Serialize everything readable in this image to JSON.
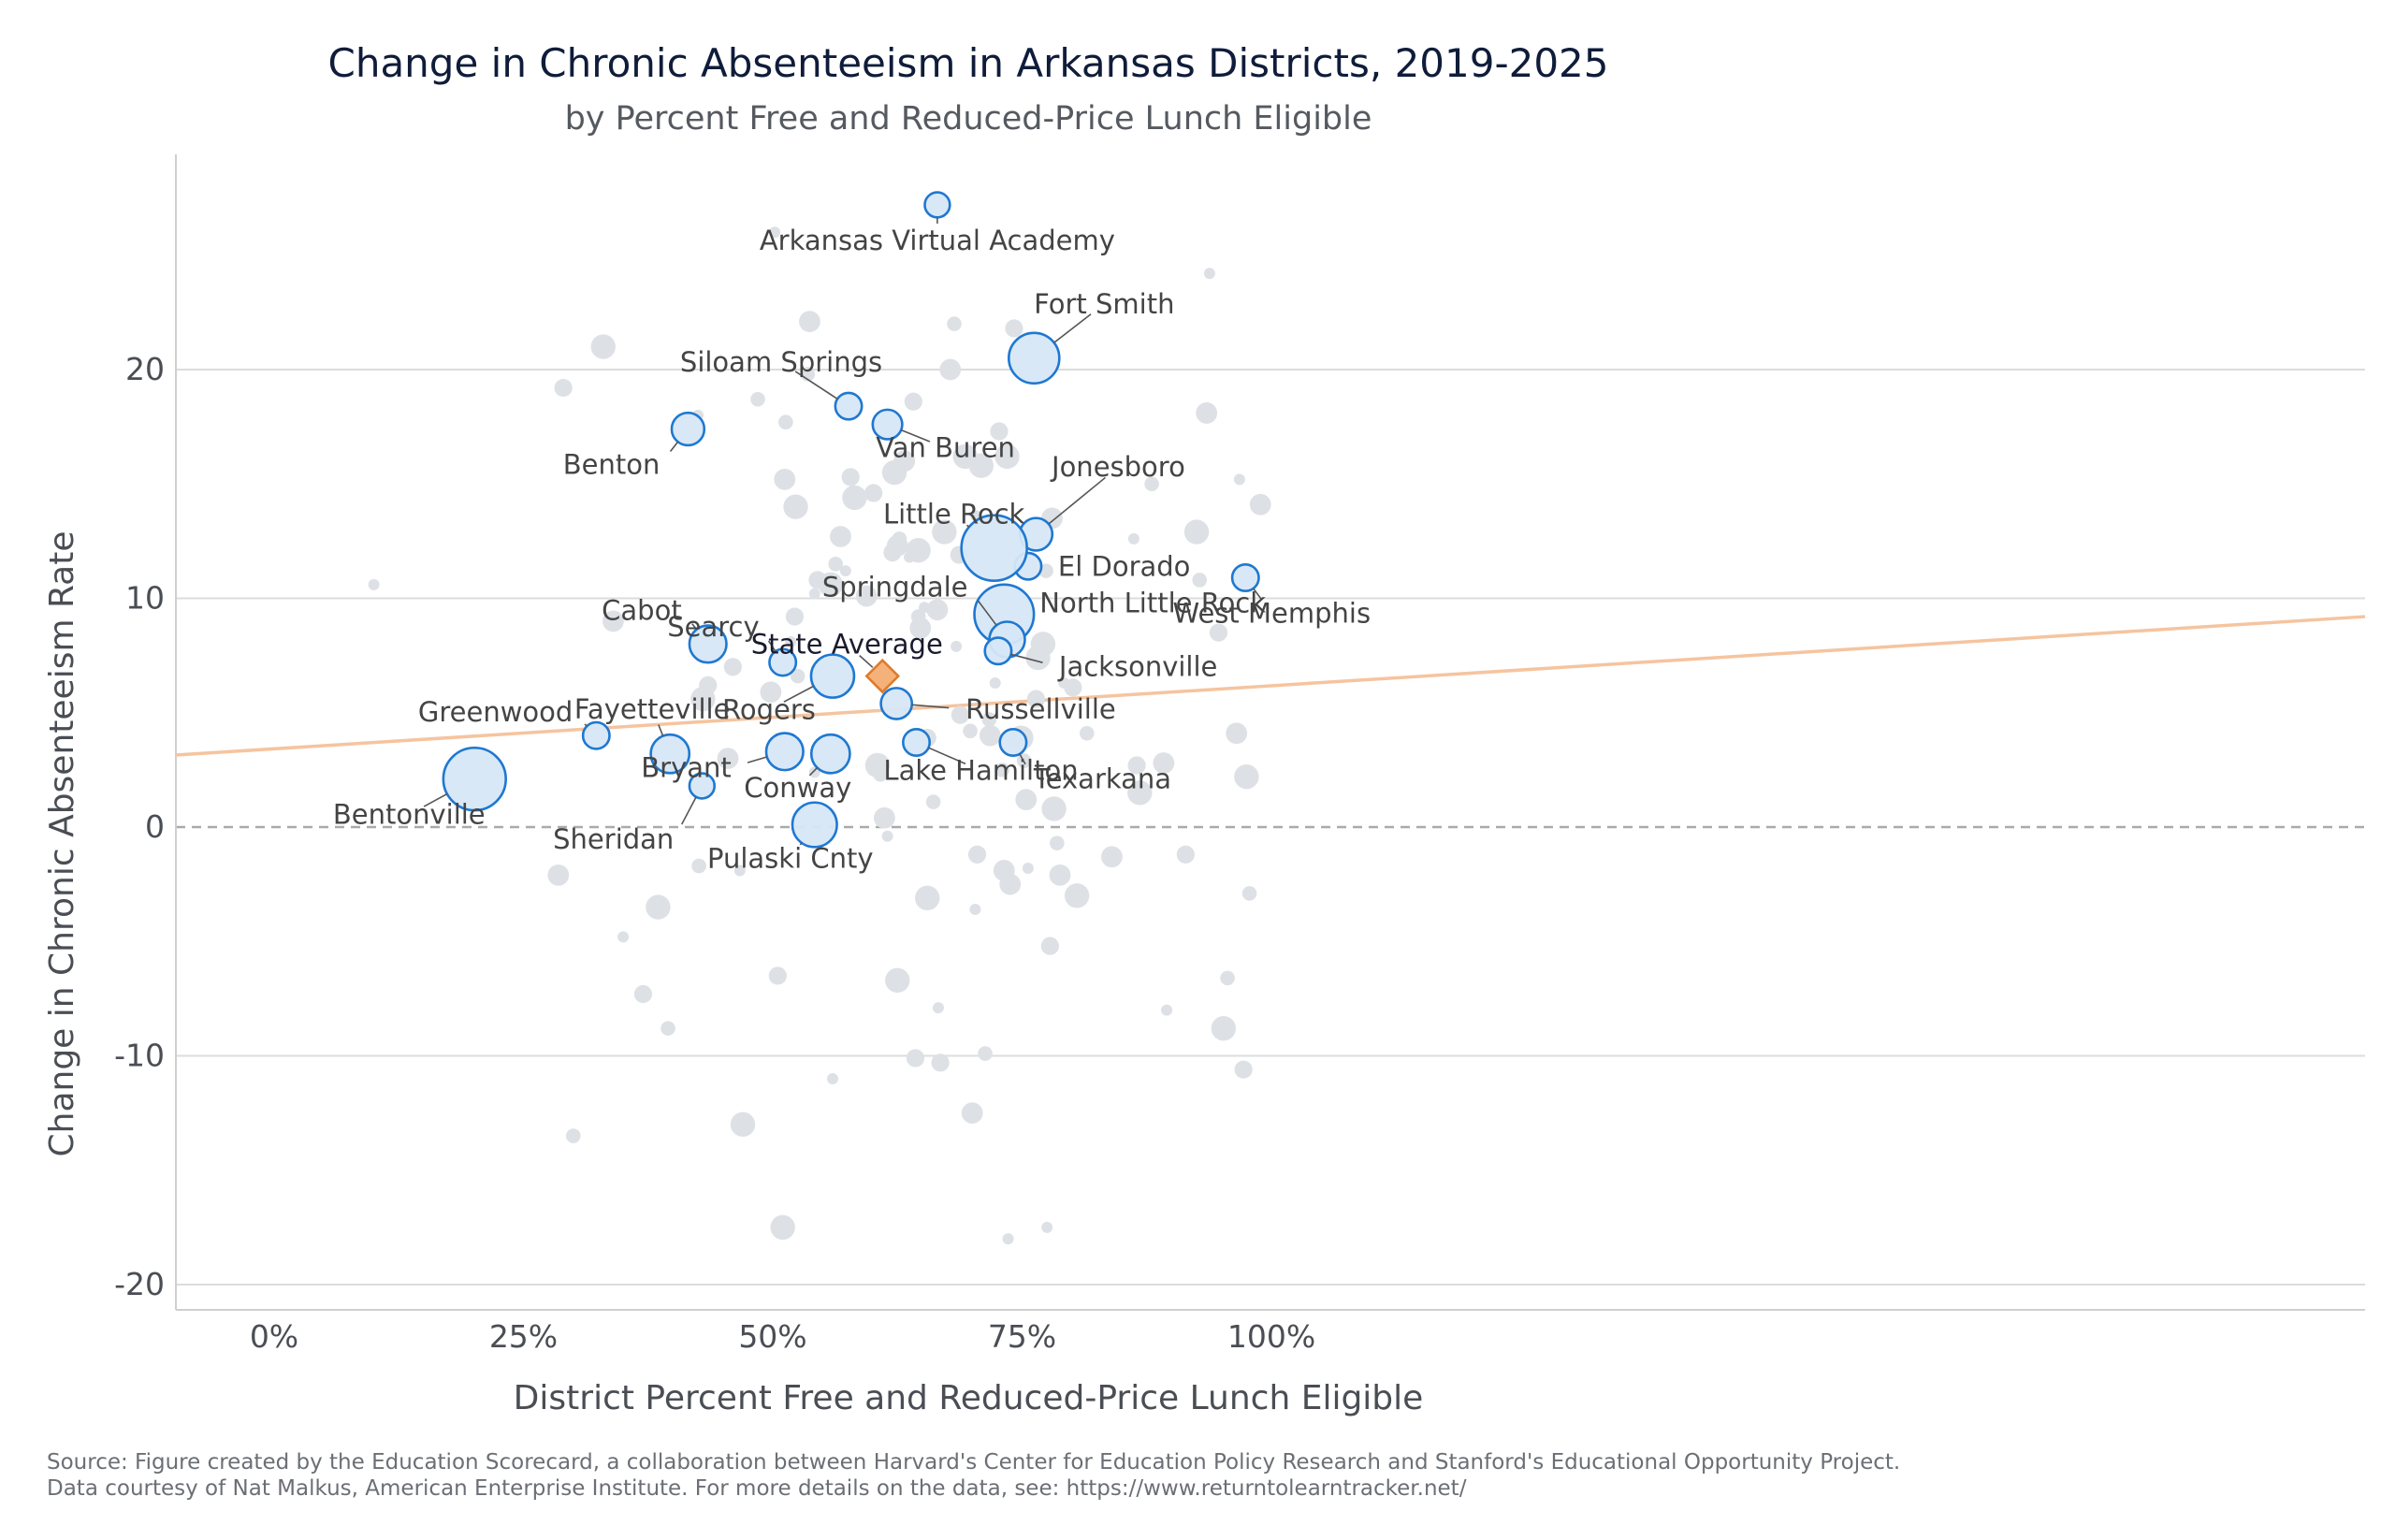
{
  "chart_data": {
    "type": "scatter",
    "title": "Change in Chronic Absenteeism in Arkansas Districts, 2019-2025",
    "subtitle": "by Percent Free and Reduced-Price Lunch Eligible",
    "xlabel": "District Percent Free and Reduced-Price Lunch Eligible",
    "ylabel": "Change in Chronic Absenteeism Rate",
    "xlim": [
      -5,
      105
    ],
    "ylim": [
      -21.5,
      29
    ],
    "x_ticks": [
      0,
      25,
      50,
      75,
      100
    ],
    "x_tick_labels": [
      "0%",
      "25%",
      "50%",
      "75%",
      "100%"
    ],
    "y_ticks": [
      -20,
      -10,
      0,
      10,
      20
    ],
    "y_tick_labels": [
      "-20",
      "-10",
      "0",
      "10",
      "20"
    ],
    "grid": "horizontal",
    "reference_line_y": 0,
    "trend_line": {
      "x": [
        -5,
        105
      ],
      "y": [
        3.15,
        9.2
      ],
      "color": "#f5c49f"
    },
    "colors": {
      "highlight_fill": "#d6e7f7",
      "highlight_stroke": "#1f78d1",
      "background_point": "#dde1e5",
      "state_average": "#f4b27a",
      "state_average_stroke": "#e07b2a",
      "grid": "#dcdcdc",
      "zero_line": "#aaaaaa"
    },
    "state_average": {
      "name": "State Average",
      "x": 61,
      "y": 6.6
    },
    "highlighted": [
      {
        "name": "Arkansas Virtual Academy",
        "x": 66.5,
        "y": 27.2,
        "size": 1.3
      },
      {
        "name": "Fort Smith",
        "x": 76.2,
        "y": 20.5,
        "size": 3.0
      },
      {
        "name": "Siloam Springs",
        "x": 57.6,
        "y": 18.4,
        "size": 1.4
      },
      {
        "name": "Van Buren",
        "x": 61.5,
        "y": 17.6,
        "size": 1.6
      },
      {
        "name": "Benton",
        "x": 41.5,
        "y": 17.4,
        "size": 1.8
      },
      {
        "name": "Jonesboro",
        "x": 76.4,
        "y": 12.8,
        "size": 1.8
      },
      {
        "name": "El Dorado",
        "x": 75.6,
        "y": 11.4,
        "size": 1.4
      },
      {
        "name": "Little Rock",
        "x": 72.2,
        "y": 12.2,
        "size": 4.0
      },
      {
        "name": "West Memphis",
        "x": 97.4,
        "y": 10.9,
        "size": 1.4
      },
      {
        "name": "North Little Rock",
        "x": 73.2,
        "y": 9.3,
        "size": 3.6
      },
      {
        "name": "Springdale",
        "x": 73.5,
        "y": 8.2,
        "size": 2.0
      },
      {
        "name": "Jacksonville",
        "x": 72.6,
        "y": 7.7,
        "size": 1.4
      },
      {
        "name": "Cabot",
        "x": 43.5,
        "y": 8.0,
        "size": 2.1
      },
      {
        "name": "Searcy",
        "x": 51.0,
        "y": 7.2,
        "size": 1.4
      },
      {
        "name": "Rogers",
        "x": 56.0,
        "y": 6.6,
        "size": 2.5
      },
      {
        "name": "Russellville",
        "x": 62.4,
        "y": 5.4,
        "size": 1.7
      },
      {
        "name": "Greenwood",
        "x": 32.3,
        "y": 4.0,
        "size": 1.4
      },
      {
        "name": "Fayetteville",
        "x": 39.7,
        "y": 3.2,
        "size": 2.2
      },
      {
        "name": "Bryant",
        "x": 51.2,
        "y": 3.3,
        "size": 2.1
      },
      {
        "name": "Conway",
        "x": 55.8,
        "y": 3.2,
        "size": 2.2
      },
      {
        "name": "Lake Hamilton",
        "x": 64.4,
        "y": 3.7,
        "size": 1.4
      },
      {
        "name": "Texarkana",
        "x": 74.1,
        "y": 3.7,
        "size": 1.4
      },
      {
        "name": "Bentonville",
        "x": 20.1,
        "y": 2.1,
        "size": 3.8
      },
      {
        "name": "Sheridan",
        "x": 42.9,
        "y": 1.8,
        "size": 1.3
      },
      {
        "name": "Pulaski Cnty",
        "x": 54.2,
        "y": 0.1,
        "size": 2.6
      }
    ],
    "other_districts": [
      [
        10,
        10.6
      ],
      [
        29,
        19.2
      ],
      [
        33,
        21
      ],
      [
        30,
        -13.5
      ],
      [
        28.5,
        -2.1
      ],
      [
        35,
        -4.8
      ],
      [
        37,
        -7.3
      ],
      [
        38.5,
        -3.5
      ],
      [
        39.5,
        -8.8
      ],
      [
        34,
        9
      ],
      [
        42.5,
        18
      ],
      [
        43.5,
        6.2
      ],
      [
        43,
        5.6
      ],
      [
        42.6,
        -1.7
      ],
      [
        45.5,
        3
      ],
      [
        46.7,
        -1.9
      ],
      [
        46,
        7
      ],
      [
        47,
        -13
      ],
      [
        48.5,
        18.7
      ],
      [
        49.8,
        5.9
      ],
      [
        50.2,
        26
      ],
      [
        50.5,
        -6.5
      ],
      [
        51,
        -17.5
      ],
      [
        51.3,
        17.7
      ],
      [
        51.2,
        15.2
      ],
      [
        51.8,
        8.1
      ],
      [
        52.2,
        9.2
      ],
      [
        52.3,
        14
      ],
      [
        53.5,
        19.8
      ],
      [
        53.7,
        22.1
      ],
      [
        54.2,
        2.4
      ],
      [
        54.5,
        10.8
      ],
      [
        55.8,
        10.6
      ],
      [
        56.3,
        11.5
      ],
      [
        56.8,
        12.7
      ],
      [
        57.3,
        11.2
      ],
      [
        57.8,
        15.3
      ],
      [
        58.2,
        14.4
      ],
      [
        58.7,
        14.4
      ],
      [
        59.4,
        10.1
      ],
      [
        56,
        -11
      ],
      [
        60.1,
        14.6
      ],
      [
        60.5,
        2.7
      ],
      [
        60.8,
        2.3
      ],
      [
        61.2,
        0.4
      ],
      [
        61.5,
        -0.4
      ],
      [
        62,
        12
      ],
      [
        62.2,
        15.5
      ],
      [
        62.7,
        12.6
      ],
      [
        63.2,
        16
      ],
      [
        63.7,
        11.8
      ],
      [
        64.1,
        18.6
      ],
      [
        64.6,
        12.1
      ],
      [
        64.6,
        9.2
      ],
      [
        64.8,
        8.7
      ],
      [
        65.2,
        9.6
      ],
      [
        65.5,
        3.9
      ],
      [
        65.5,
        -3.1
      ],
      [
        66.1,
        1.1
      ],
      [
        66.5,
        9.5
      ],
      [
        66.6,
        -7.9
      ],
      [
        66.8,
        -10.3
      ],
      [
        67.2,
        12.9
      ],
      [
        68.2,
        22
      ],
      [
        67.8,
        20
      ],
      [
        68.4,
        7.9
      ],
      [
        68.8,
        4.9
      ],
      [
        69.3,
        16.2
      ],
      [
        69.8,
        4.2
      ],
      [
        70,
        -12.5
      ],
      [
        70.3,
        -3.6
      ],
      [
        70.5,
        -1.2
      ],
      [
        70.9,
        15.8
      ],
      [
        71.3,
        -9.9
      ],
      [
        71.8,
        4
      ],
      [
        72.3,
        6.3
      ],
      [
        72.7,
        17.3
      ],
      [
        73.5,
        16.2
      ],
      [
        73,
        2.5
      ],
      [
        73.8,
        -2.5
      ],
      [
        73.6,
        -18
      ],
      [
        74.2,
        21.8
      ],
      [
        74.9,
        3.9
      ],
      [
        75.2,
        2.9
      ],
      [
        75.4,
        1.2
      ],
      [
        75.6,
        -1.8
      ],
      [
        76.4,
        5.6
      ],
      [
        77.1,
        8
      ],
      [
        77.4,
        11.2
      ],
      [
        78,
        13.5
      ],
      [
        77.5,
        -17.5
      ],
      [
        77.8,
        -5.2
      ],
      [
        78.2,
        0.8
      ],
      [
        78.5,
        -0.7
      ],
      [
        78.8,
        -2.1
      ],
      [
        79.2,
        6.3
      ],
      [
        80.1,
        6.1
      ],
      [
        80.5,
        -3
      ],
      [
        81.5,
        4.1
      ],
      [
        84,
        -1.3
      ],
      [
        86.2,
        12.6
      ],
      [
        86.5,
        2.7
      ],
      [
        86.8,
        1.5
      ],
      [
        88,
        15
      ],
      [
        89.2,
        2.8
      ],
      [
        89.5,
        -8
      ],
      [
        91.4,
        -1.2
      ],
      [
        92.5,
        12.9
      ],
      [
        92.8,
        10.8
      ],
      [
        93.5,
        18.1
      ],
      [
        93.8,
        24.2
      ],
      [
        94.7,
        8.5
      ],
      [
        95.2,
        -8.8
      ],
      [
        95.6,
        -6.6
      ],
      [
        96.5,
        4.1
      ],
      [
        96.8,
        15.2
      ],
      [
        97.2,
        -10.6
      ],
      [
        97.5,
        2.2
      ],
      [
        97.8,
        -2.9
      ],
      [
        98.9,
        14.1
      ],
      [
        54.2,
        10.2
      ],
      [
        64.3,
        -10.1
      ],
      [
        62.5,
        -6.7
      ],
      [
        52.5,
        6.6
      ],
      [
        62.5,
        12.3
      ],
      [
        70.4,
        13.6
      ],
      [
        68.7,
        11.9
      ],
      [
        76.6,
        7.4
      ],
      [
        71.7,
        4.7
      ],
      [
        73.2,
        -1.9
      ]
    ]
  },
  "source_line1": "Source: Figure created by the Education Scorecard, a collaboration between Harvard's Center for Education Policy Research and Stanford's Educational Opportunity Project.",
  "source_line2": "Data courtesy of Nat Malkus, American Enterprise Institute. For more details on the data, see: https://www.returntolearntracker.net/"
}
